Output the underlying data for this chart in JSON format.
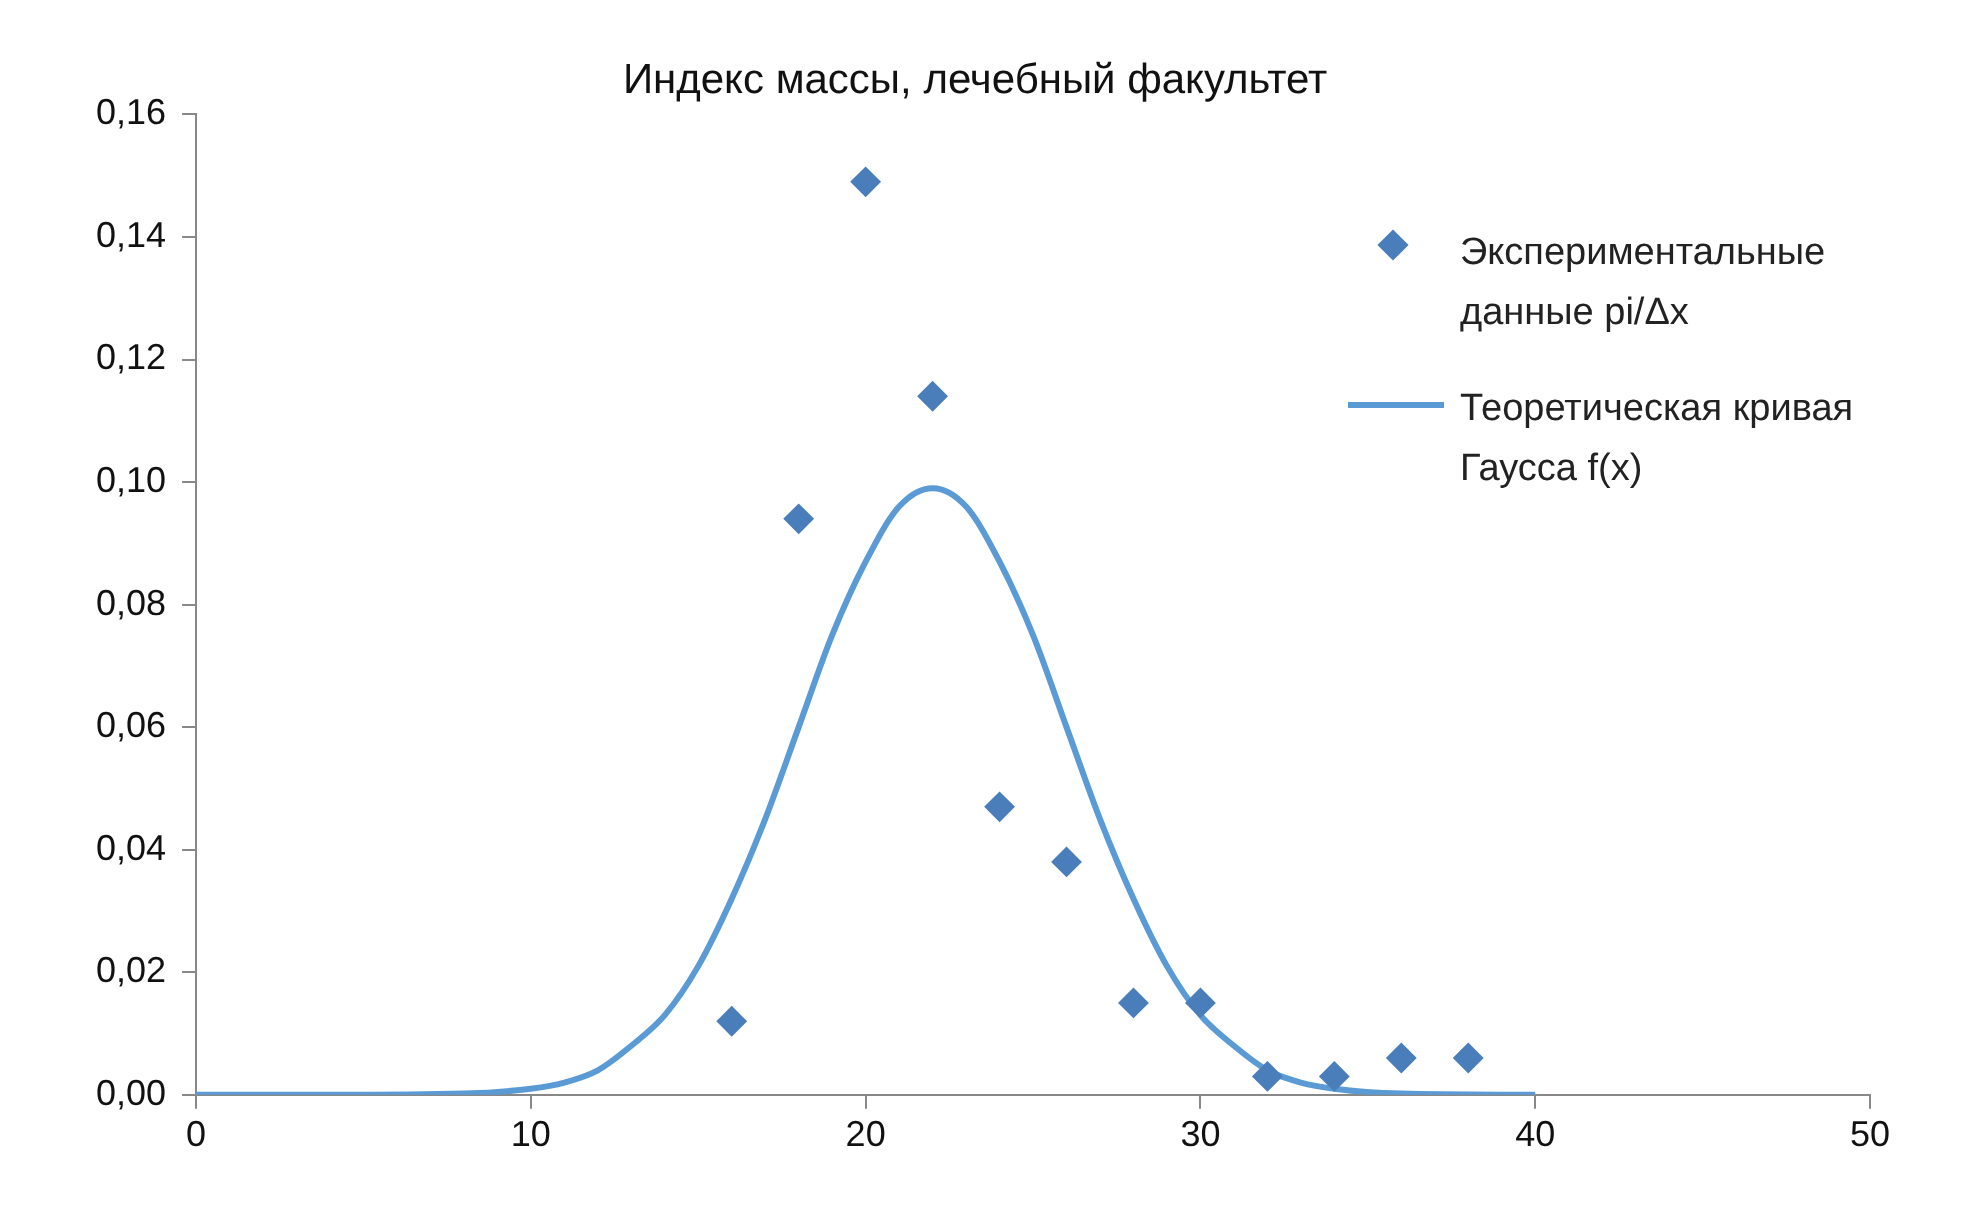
{
  "chart_data": {
    "type": "scatter",
    "title": "Индекс массы, лечебный факультет",
    "series": [
      {
        "name": "Экспериментальные данные pi/Δx",
        "marker": "diamond",
        "color": "#4a7ebb",
        "x": [
          16,
          18,
          20,
          22,
          24,
          26,
          28,
          30,
          32,
          34,
          36,
          38
        ],
        "values": [
          0.012,
          0.094,
          0.149,
          0.114,
          0.047,
          0.038,
          0.015,
          0.015,
          0.003,
          0.003,
          0.006,
          0.006
        ]
      },
      {
        "name": "Теоретическая кривая Гаусса f(x)",
        "type": "line",
        "marker": "none",
        "color": "#5b9bd5",
        "x": [
          0,
          4,
          8,
          10,
          11,
          12,
          13,
          14,
          15,
          16,
          17,
          18,
          19,
          20,
          21,
          22,
          23,
          24,
          25,
          26,
          27,
          28,
          29,
          30,
          31,
          32,
          33,
          34,
          36,
          40
        ],
        "values": [
          0,
          0,
          0.0002,
          0.001,
          0.002,
          0.004,
          0.008,
          0.013,
          0.021,
          0.032,
          0.045,
          0.06,
          0.075,
          0.087,
          0.096,
          0.099,
          0.096,
          0.087,
          0.075,
          0.06,
          0.045,
          0.032,
          0.021,
          0.013,
          0.008,
          0.004,
          0.002,
          0.001,
          0.0002,
          0
        ]
      }
    ],
    "xlim": [
      0,
      50
    ],
    "xticks": [
      0,
      10,
      20,
      30,
      40,
      50
    ],
    "ylim": [
      0,
      0.16
    ],
    "yticks": [
      {
        "value": 0,
        "label": "0,00"
      },
      {
        "value": 0.02,
        "label": "0,02"
      },
      {
        "value": 0.04,
        "label": "0,04"
      },
      {
        "value": 0.06,
        "label": "0,06"
      },
      {
        "value": 0.08,
        "label": "0,08"
      },
      {
        "value": 0.1,
        "label": "0,10"
      },
      {
        "value": 0.12,
        "label": "0,12"
      },
      {
        "value": 0.14,
        "label": "0,14"
      },
      {
        "value": 0.16,
        "label": "0,16"
      }
    ],
    "grid": false,
    "legend": "top right"
  }
}
